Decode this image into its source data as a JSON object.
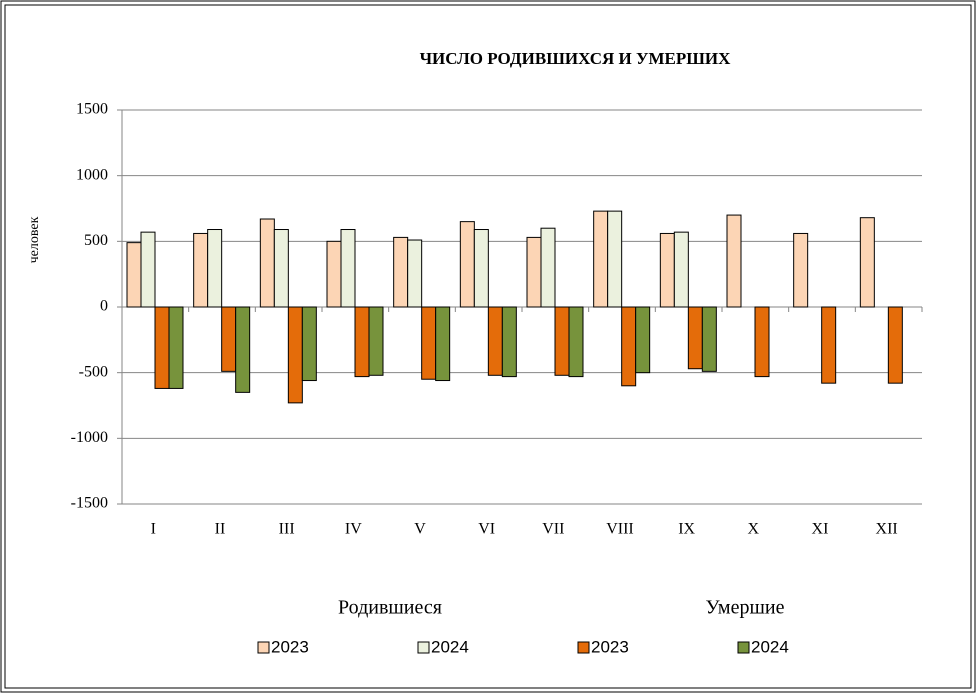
{
  "chart_data": {
    "type": "bar",
    "title": "ЧИСЛО РОДИВШИХСЯ И УМЕРШИХ",
    "y_label": "человек",
    "categories": [
      "I",
      "II",
      "III",
      "IV",
      "V",
      "VI",
      "VII",
      "VIII",
      "IX",
      "X",
      "XI",
      "XII"
    ],
    "legend_groups": [
      "Родившиеся",
      "Умершие"
    ],
    "series": [
      {
        "name": "2023",
        "color": "#fcd5b5",
        "values": [
          490,
          560,
          670,
          500,
          530,
          650,
          530,
          730,
          560,
          700,
          560,
          680
        ]
      },
      {
        "name": "2024",
        "color": "#ebf1de",
        "values": [
          570,
          590,
          590,
          590,
          510,
          590,
          600,
          730,
          570,
          null,
          null,
          null
        ]
      },
      {
        "name": "2023",
        "color": "#e46c0a",
        "values": [
          -620,
          -490,
          -730,
          -530,
          -550,
          -520,
          -520,
          -600,
          -470,
          -530,
          -580,
          -580
        ]
      },
      {
        "name": "2024",
        "color": "#77933c",
        "values": [
          -620,
          -650,
          -560,
          -520,
          -560,
          -530,
          -530,
          -500,
          -490,
          null,
          null,
          null
        ]
      }
    ],
    "ylim": [
      -1500,
      1500
    ],
    "yticks": [
      -1500,
      -1000,
      -500,
      0,
      500,
      1000,
      1500
    ],
    "grid": true
  }
}
